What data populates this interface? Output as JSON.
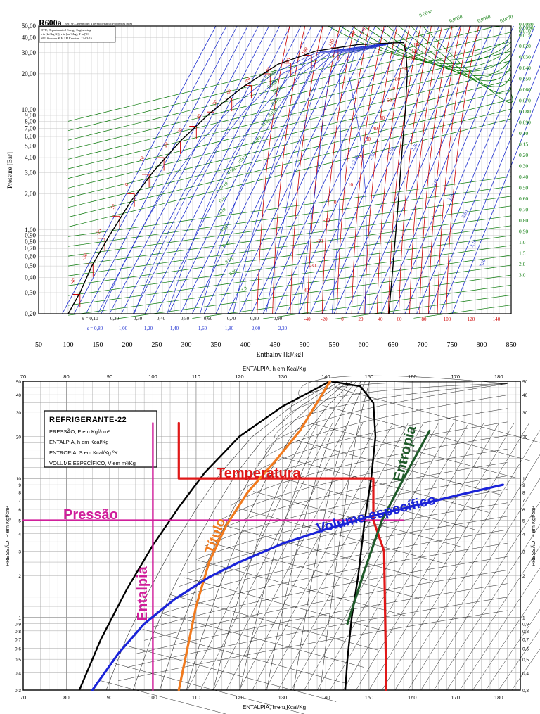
{
  "chart_data": [
    {
      "type": "line",
      "title": "R600a",
      "title_note": "Ref: W.C.Reynolds: Thermodynamic Properties in SI",
      "info_box": [
        "DTU, Department of Energy Engineering",
        "s in [kJ/(kg K)], v in [m^3/kg], T in [ºC]",
        "M.J. Skovrup & H.J.H Knudsen. 12-03-16"
      ],
      "xlabel": "Enthalpy [kJ/kg]",
      "ylabel": "Pressure [Bar]",
      "xlim": [
        50,
        850
      ],
      "ylim": [
        0.2,
        50
      ],
      "yscale": "log",
      "x_ticks": [
        "50",
        "100",
        "150",
        "200",
        "250",
        "300",
        "350",
        "400",
        "450",
        "500",
        "550",
        "600",
        "650",
        "700",
        "750",
        "800",
        "850"
      ],
      "y_ticks": [
        "0,20",
        "0,30",
        "0,40",
        "0,50",
        "0,60",
        "0,70",
        "0,80",
        "0,90",
        "1,00",
        "2,00",
        "3,00",
        "4,00",
        "5,00",
        "6,00",
        "7,00",
        "8,00",
        "9,00",
        "10,00",
        "20,00",
        "30,00",
        "40,00",
        "50,00"
      ],
      "quality_row": [
        "x = 0,10",
        "0,20",
        "0,30",
        "0,40",
        "0,50",
        "0,60",
        "0,70",
        "0,80",
        "0,90"
      ],
      "entropy_row": [
        "s = 0,80",
        "1,00",
        "1,20",
        "1,40",
        "1,60",
        "1,80",
        "2,00",
        "2,20"
      ],
      "temp_row": [
        "-40",
        "-20",
        "0",
        "20",
        "40",
        "60",
        "80",
        "100",
        "120",
        "140"
      ],
      "right_labels": [
        "0,0080",
        "0,0090",
        "0,010",
        "0,015",
        "0,020",
        "0,030",
        "0,040",
        "0,050",
        "0,060",
        "0,070",
        "0,080",
        "0,090",
        "0,10",
        "0,15",
        "0,20",
        "0,30",
        "0,40",
        "0,50",
        "0,60",
        "0,70",
        "0,80",
        "0,90",
        "1,0",
        "1,5",
        "2,0",
        "3,0"
      ],
      "top_labels": [
        "0,0040",
        "0,0050",
        "0,0060",
        "0,0070"
      ],
      "isotherm_labels": [
        "-40",
        "-30",
        "-20",
        "-10",
        "0",
        "10",
        "20",
        "30",
        "40",
        "50",
        "60",
        "70",
        "80",
        "90",
        "100",
        "110",
        "120",
        "130"
      ],
      "volume_labels": [
        "v= 0,0060",
        "0,0080",
        "0,010",
        "0,015",
        "0,020",
        "0,030",
        "0,040",
        "0,060",
        "0,080",
        "0,10",
        "0,15",
        "0,20",
        "0,30",
        "0,40",
        "0,60",
        "0,80",
        "1,0"
      ],
      "entropy_labels": [
        "s = 2,40",
        "2,50",
        "2,60",
        "2,70",
        "2,80",
        "2,90",
        "3,00",
        "3,10",
        "3,20"
      ],
      "critical_point": {
        "h": 668,
        "p": 36.4
      },
      "saturation_liquid": [
        [
          100,
          0.2
        ],
        [
          120,
          0.3
        ],
        [
          140,
          0.5
        ],
        [
          170,
          0.9
        ],
        [
          205,
          1.7
        ],
        [
          245,
          3.1
        ],
        [
          290,
          5.5
        ],
        [
          340,
          9.4
        ],
        [
          395,
          15.4
        ],
        [
          455,
          24
        ],
        [
          520,
          31
        ],
        [
          590,
          35
        ],
        [
          650,
          36.2
        ],
        [
          668,
          36.4
        ]
      ],
      "saturation_vapor": [
        [
          668,
          36.4
        ],
        [
          672,
          30
        ],
        [
          674,
          20
        ],
        [
          671,
          10
        ],
        [
          666,
          5
        ],
        [
          660,
          2
        ],
        [
          655,
          1
        ],
        [
          650,
          0.5
        ],
        [
          646,
          0.3
        ],
        [
          643,
          0.2
        ]
      ],
      "colors": {
        "frame": "#000000",
        "isotherm": "#cc0000",
        "isochore": "#0a7a0a",
        "isentrope": "#1e2fd0",
        "quality": "#1e2fd0",
        "grid": "#c8c8c8"
      }
    },
    {
      "type": "line",
      "title": "REFRIGERANTE-22",
      "legend_lines": [
        "PRESSÃO, P em Kgf/cm²",
        "ENTALPIA, h em Kcal/Kg",
        "ENTROPIA, S em Kcal/Kg ºK",
        "VOLUME ESPECÍFICO, V em m³/Kg"
      ],
      "xlabel_top": "ENTALPIA, h em Kcal/Kg",
      "xlabel_bottom": "ENTALPIA, h em Kcal/Kg",
      "ylabel_left": "PRESSÃO, P em Kgf/cm²",
      "ylabel_right": "PRESSÃO, P em Kgf/cm²",
      "xlim": [
        70,
        185
      ],
      "ylim": [
        0.3,
        50
      ],
      "yscale": "log",
      "x_ticks": [
        "70",
        "80",
        "90",
        "100",
        "110",
        "120",
        "130",
        "140",
        "150",
        "160",
        "170",
        "180"
      ],
      "y_ticks": [
        "50",
        "40",
        "30",
        "20",
        "10",
        "9",
        "8",
        "7",
        "6",
        "5",
        "4",
        "3",
        "2",
        "1",
        "0,9",
        "0,8",
        "0,7",
        "0,6",
        "0,5",
        "0,4",
        "0,3"
      ],
      "annotations": [
        {
          "text": "Pressão",
          "color": "#d01f9b"
        },
        {
          "text": "Temperatura",
          "color": "#e01818"
        },
        {
          "text": "Entalpia",
          "color": "#d01f9b"
        },
        {
          "text": "Título",
          "color": "#f07a1e"
        },
        {
          "text": "Volume específico",
          "color": "#1a23d8"
        },
        {
          "text": "Entropia",
          "color": "#1f5a2a"
        }
      ],
      "series": [
        {
          "name": "Pressão",
          "color": "#d01f9b",
          "points": [
            [
              70,
              5
            ],
            [
              158,
              5
            ]
          ]
        },
        {
          "name": "Entalpia",
          "color": "#d01f9b",
          "points": [
            [
              100,
              0.3
            ],
            [
              100,
              25
            ]
          ]
        },
        {
          "name": "Temperatura",
          "color": "#e01818",
          "points": [
            [
              106,
              25
            ],
            [
              106,
              10
            ],
            [
              151,
              10
            ],
            [
              151,
              5
            ],
            [
              153.5,
              3
            ],
            [
              154,
              0.3
            ]
          ]
        },
        {
          "name": "Título",
          "color": "#f07a1e",
          "points": [
            [
              106,
              0.3
            ],
            [
              108,
              0.6
            ],
            [
              110,
              1.2
            ],
            [
              113,
              2.5
            ],
            [
              117,
              4.6
            ],
            [
              122,
              8
            ],
            [
              128,
              13
            ],
            [
              134,
              22
            ],
            [
              141,
              50
            ]
          ]
        },
        {
          "name": "Volume específico",
          "color": "#1a23d8",
          "points": [
            [
              86,
              0.3
            ],
            [
              92,
              0.55
            ],
            [
              98,
              0.9
            ],
            [
              105,
              1.35
            ],
            [
              113,
              1.95
            ],
            [
              120,
              2.5
            ],
            [
              130,
              3.4
            ],
            [
              140,
              4.3
            ],
            [
              150,
              5.3
            ],
            [
              160,
              6.3
            ],
            [
              170,
              7.5
            ],
            [
              181,
              9
            ]
          ]
        },
        {
          "name": "Entropia",
          "color": "#1f5a2a",
          "points": [
            [
              145,
              0.9
            ],
            [
              149,
              2.2
            ],
            [
              153,
              5
            ],
            [
              158,
              10
            ],
            [
              164,
              22
            ]
          ]
        }
      ],
      "dome_liquid": [
        [
          83,
          0.3
        ],
        [
          88,
          0.7
        ],
        [
          94,
          1.6
        ],
        [
          100,
          3.3
        ],
        [
          106,
          6.2
        ],
        [
          112,
          11
        ],
        [
          120,
          20
        ],
        [
          130,
          33
        ],
        [
          141,
          50
        ]
      ],
      "dome_vapor": [
        [
          141,
          50
        ],
        [
          148,
          46
        ],
        [
          151,
          35
        ],
        [
          151.5,
          20
        ],
        [
          150.5,
          10
        ],
        [
          149,
          5
        ],
        [
          147.5,
          2
        ],
        [
          146,
          1
        ],
        [
          145,
          0.5
        ],
        [
          144.5,
          0.3
        ]
      ],
      "colors": {
        "frame": "#000000",
        "grid": "#9a9a9a",
        "dome": "#000000"
      }
    }
  ]
}
